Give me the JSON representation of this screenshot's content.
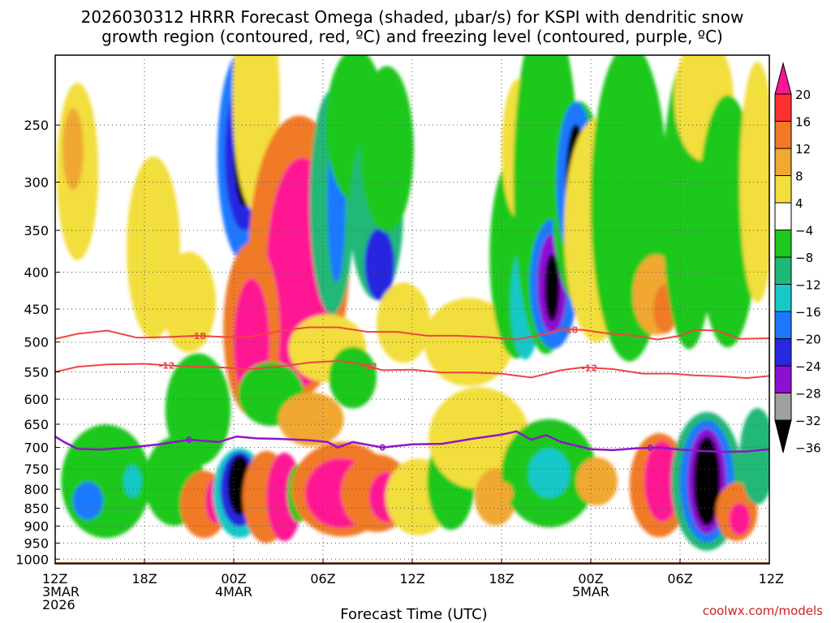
{
  "title": {
    "line1": "2026030312 HRRR Forecast Omega (shaded, μbar/s) for KSPI with dendritic snow",
    "line2": "growth region (contoured, red, ºC) and freezing level (contoured, purple, ºC)"
  },
  "x_axis_label": "Forecast Time (UTC)",
  "credit": "coolwx.com/models",
  "chart_data": {
    "type": "heatmap",
    "title": "2026030312 HRRR Forecast Omega (shaded, μbar/s) for KSPI with dendritic snow growth region (contoured, red, ºC) and freezing level (contoured, purple, ºC)",
    "xlabel": "Forecast Time (UTC)",
    "ylabel": "",
    "x_range_hours": [
      0,
      48
    ],
    "y_range_hpa": [
      1015,
      200
    ],
    "grid": true,
    "y_ticks": [
      250,
      300,
      350,
      400,
      450,
      500,
      550,
      600,
      650,
      700,
      750,
      800,
      850,
      900,
      950,
      1000
    ],
    "x_ticks": [
      {
        "hour": 0,
        "lines": [
          "12Z",
          "3MAR",
          "2026"
        ]
      },
      {
        "hour": 6,
        "lines": [
          "18Z"
        ]
      },
      {
        "hour": 12,
        "lines": [
          "00Z",
          "4MAR"
        ]
      },
      {
        "hour": 18,
        "lines": [
          "06Z"
        ]
      },
      {
        "hour": 24,
        "lines": [
          "12Z"
        ]
      },
      {
        "hour": 30,
        "lines": [
          "18Z"
        ]
      },
      {
        "hour": 36,
        "lines": [
          "00Z",
          "5MAR"
        ]
      },
      {
        "hour": 42,
        "lines": [
          "06Z"
        ]
      },
      {
        "hour": 48,
        "lines": [
          "12Z"
        ]
      }
    ],
    "colorbar": {
      "labels": [
        "20",
        "16",
        "12",
        "8",
        "4",
        "−4",
        "−8",
        "−12",
        "−16",
        "−20",
        "−24",
        "−28",
        "−32",
        "−36"
      ],
      "colors": [
        "#ff1493",
        "#ff3030",
        "#f07a28",
        "#f0a830",
        "#f2de3c",
        "#ffffff",
        "#1ec81e",
        "#20b878",
        "#18c8c8",
        "#1e78ff",
        "#2828e0",
        "#8c10d0",
        "#a0a0a0",
        "#000000"
      ]
    },
    "omega_cells": [
      {
        "t": 1.5,
        "p": 290,
        "dt": 1.4,
        "dp": 160,
        "c": 4
      },
      {
        "t": 1.2,
        "p": 270,
        "dt": 0.7,
        "dp": 70,
        "c": 3
      },
      {
        "t": 6.6,
        "p": 370,
        "dt": 1.8,
        "dp": 210,
        "c": 4
      },
      {
        "t": 9.0,
        "p": 440,
        "dt": 1.8,
        "dp": 140,
        "c": 4
      },
      {
        "t": 12.7,
        "p": 275,
        "dt": 1.8,
        "dp": 180,
        "c": 9
      },
      {
        "t": 12.7,
        "p": 275,
        "dt": 1.3,
        "dp": 130,
        "c": 10
      },
      {
        "t": 12.7,
        "p": 275,
        "dt": 0.7,
        "dp": 90,
        "c": 13
      },
      {
        "t": 13.5,
        "p": 230,
        "dt": 1.6,
        "dp": 160,
        "c": 4
      },
      {
        "t": 16.4,
        "p": 380,
        "dt": 3.4,
        "dp": 320,
        "c": 2
      },
      {
        "t": 16.6,
        "p": 400,
        "dt": 2.4,
        "dp": 280,
        "c": 0
      },
      {
        "t": 13.2,
        "p": 480,
        "dt": 1.9,
        "dp": 260,
        "c": 2
      },
      {
        "t": 13.2,
        "p": 500,
        "dt": 1.2,
        "dp": 200,
        "c": 0
      },
      {
        "t": 14.5,
        "p": 590,
        "dt": 2.2,
        "dp": 120,
        "c": 6
      },
      {
        "t": 18.6,
        "p": 320,
        "dt": 1.5,
        "dp": 220,
        "c": 7
      },
      {
        "t": 18.9,
        "p": 320,
        "dt": 0.6,
        "dp": 160,
        "c": 9
      },
      {
        "t": 20.2,
        "p": 250,
        "dt": 2.0,
        "dp": 120,
        "c": 6
      },
      {
        "t": 21.6,
        "p": 330,
        "dt": 1.8,
        "dp": 180,
        "c": 7
      },
      {
        "t": 21.8,
        "p": 390,
        "dt": 1.0,
        "dp": 90,
        "c": 10
      },
      {
        "t": 22.3,
        "p": 270,
        "dt": 1.8,
        "dp": 140,
        "c": 6
      },
      {
        "t": 23.4,
        "p": 470,
        "dt": 1.8,
        "dp": 120,
        "c": 4
      },
      {
        "t": 18.3,
        "p": 510,
        "dt": 2.6,
        "dp": 110,
        "c": 4
      },
      {
        "t": 17.2,
        "p": 640,
        "dt": 2.2,
        "dp": 110,
        "c": 3
      },
      {
        "t": 20.0,
        "p": 560,
        "dt": 1.6,
        "dp": 110,
        "c": 6
      },
      {
        "t": 9.6,
        "p": 620,
        "dt": 2.2,
        "dp": 220,
        "c": 6
      },
      {
        "t": 8.0,
        "p": 780,
        "dt": 2.0,
        "dp": 220,
        "c": 6
      },
      {
        "t": 3.4,
        "p": 780,
        "dt": 3.0,
        "dp": 280,
        "c": 6
      },
      {
        "t": 2.2,
        "p": 830,
        "dt": 1.0,
        "dp": 100,
        "c": 9
      },
      {
        "t": 5.2,
        "p": 780,
        "dt": 0.6,
        "dp": 80,
        "c": 8
      },
      {
        "t": 10.0,
        "p": 840,
        "dt": 1.6,
        "dp": 180,
        "c": 2
      },
      {
        "t": 10.8,
        "p": 830,
        "dt": 0.7,
        "dp": 120,
        "c": 0
      },
      {
        "t": 12.4,
        "p": 810,
        "dt": 1.8,
        "dp": 230,
        "c": 8
      },
      {
        "t": 12.4,
        "p": 800,
        "dt": 1.3,
        "dp": 190,
        "c": 10
      },
      {
        "t": 12.4,
        "p": 790,
        "dt": 0.8,
        "dp": 150,
        "c": 13
      },
      {
        "t": 14.2,
        "p": 820,
        "dt": 1.6,
        "dp": 240,
        "c": 2
      },
      {
        "t": 15.4,
        "p": 820,
        "dt": 1.2,
        "dp": 230,
        "c": 0
      },
      {
        "t": 16.4,
        "p": 810,
        "dt": 0.8,
        "dp": 150,
        "c": 6
      },
      {
        "t": 19.3,
        "p": 800,
        "dt": 3.4,
        "dp": 240,
        "c": 2
      },
      {
        "t": 19.2,
        "p": 810,
        "dt": 2.4,
        "dp": 180,
        "c": 0
      },
      {
        "t": 21.6,
        "p": 810,
        "dt": 2.4,
        "dp": 200,
        "c": 2
      },
      {
        "t": 22.3,
        "p": 820,
        "dt": 1.2,
        "dp": 130,
        "c": 0
      },
      {
        "t": 24.4,
        "p": 820,
        "dt": 2.2,
        "dp": 200,
        "c": 4
      },
      {
        "t": 26.6,
        "p": 780,
        "dt": 1.6,
        "dp": 240,
        "c": 6
      },
      {
        "t": 27.8,
        "p": 500,
        "dt": 3.0,
        "dp": 140,
        "c": 4
      },
      {
        "t": 28.5,
        "p": 680,
        "dt": 3.4,
        "dp": 220,
        "c": 4
      },
      {
        "t": 29.6,
        "p": 820,
        "dt": 1.4,
        "dp": 150,
        "c": 3
      },
      {
        "t": 30.0,
        "p": 820,
        "dt": 0.5,
        "dp": 40,
        "c": 0
      },
      {
        "t": 31.0,
        "p": 380,
        "dt": 1.8,
        "dp": 240,
        "c": 6
      },
      {
        "t": 31.6,
        "p": 440,
        "dt": 1.0,
        "dp": 160,
        "c": 8
      },
      {
        "t": 31.2,
        "p": 270,
        "dt": 1.2,
        "dp": 120,
        "c": 4
      },
      {
        "t": 33.0,
        "p": 300,
        "dt": 2.2,
        "dp": 300,
        "c": 6
      },
      {
        "t": 33.5,
        "p": 415,
        "dt": 1.6,
        "dp": 170,
        "c": 9
      },
      {
        "t": 33.4,
        "p": 415,
        "dt": 1.0,
        "dp": 130,
        "c": 11
      },
      {
        "t": 33.4,
        "p": 420,
        "dt": 0.5,
        "dp": 90,
        "c": 13
      },
      {
        "t": 35.2,
        "p": 320,
        "dt": 1.8,
        "dp": 200,
        "c": 6
      },
      {
        "t": 35.0,
        "p": 300,
        "dt": 1.3,
        "dp": 150,
        "c": 9
      },
      {
        "t": 35.0,
        "p": 300,
        "dt": 0.7,
        "dp": 110,
        "c": 13
      },
      {
        "t": 36.4,
        "p": 350,
        "dt": 2.2,
        "dp": 240,
        "c": 4
      },
      {
        "t": 38.6,
        "p": 320,
        "dt": 2.6,
        "dp": 300,
        "c": 6
      },
      {
        "t": 40.4,
        "p": 430,
        "dt": 1.6,
        "dp": 110,
        "c": 3
      },
      {
        "t": 41.0,
        "p": 450,
        "dt": 0.8,
        "dp": 70,
        "c": 2
      },
      {
        "t": 42.6,
        "p": 320,
        "dt": 1.8,
        "dp": 280,
        "c": 6
      },
      {
        "t": 43.6,
        "p": 230,
        "dt": 2.0,
        "dp": 90,
        "c": 4
      },
      {
        "t": 45.2,
        "p": 340,
        "dt": 2.0,
        "dp": 260,
        "c": 6
      },
      {
        "t": 47.2,
        "p": 300,
        "dt": 1.2,
        "dp": 220,
        "c": 4
      },
      {
        "t": 33.2,
        "p": 760,
        "dt": 3.2,
        "dp": 260,
        "c": 6
      },
      {
        "t": 33.2,
        "p": 760,
        "dt": 1.4,
        "dp": 120,
        "c": 8
      },
      {
        "t": 36.4,
        "p": 780,
        "dt": 1.4,
        "dp": 120,
        "c": 3
      },
      {
        "t": 40.6,
        "p": 790,
        "dt": 2.0,
        "dp": 260,
        "c": 2
      },
      {
        "t": 40.8,
        "p": 780,
        "dt": 1.2,
        "dp": 200,
        "c": 0
      },
      {
        "t": 43.8,
        "p": 780,
        "dt": 2.4,
        "dp": 340,
        "c": 7
      },
      {
        "t": 43.8,
        "p": 780,
        "dt": 1.8,
        "dp": 300,
        "c": 9
      },
      {
        "t": 43.8,
        "p": 780,
        "dt": 1.3,
        "dp": 260,
        "c": 11
      },
      {
        "t": 43.8,
        "p": 780,
        "dt": 0.9,
        "dp": 220,
        "c": 13
      },
      {
        "t": 45.8,
        "p": 860,
        "dt": 1.4,
        "dp": 160,
        "c": 2
      },
      {
        "t": 46.0,
        "p": 880,
        "dt": 0.7,
        "dp": 90,
        "c": 0
      },
      {
        "t": 47.2,
        "p": 720,
        "dt": 1.2,
        "dp": 220,
        "c": 7
      },
      {
        "t": 30.0,
        "p": 810,
        "dt": 0.8,
        "dp": 60,
        "c": 3
      }
    ],
    "dendritic_contours": [
      {
        "label": "-18",
        "color": "#ee4444",
        "label_positions": [
          9.6,
          34.6
        ],
        "points": [
          [
            0,
            495
          ],
          [
            1.5,
            487
          ],
          [
            3.5,
            482
          ],
          [
            5.5,
            493
          ],
          [
            7.5,
            492
          ],
          [
            9.5,
            490
          ],
          [
            11.5,
            492
          ],
          [
            13,
            492
          ],
          [
            15,
            483
          ],
          [
            17,
            477
          ],
          [
            19,
            477
          ],
          [
            21,
            484
          ],
          [
            23,
            484
          ],
          [
            25,
            490
          ],
          [
            27,
            490
          ],
          [
            29,
            492
          ],
          [
            31,
            496
          ],
          [
            33,
            487
          ],
          [
            34,
            480
          ],
          [
            35.5,
            481
          ],
          [
            37,
            486
          ],
          [
            39,
            490
          ],
          [
            40.5,
            496
          ],
          [
            42,
            490
          ],
          [
            43,
            481
          ],
          [
            44.5,
            482
          ],
          [
            46,
            495
          ],
          [
            48,
            494
          ]
        ]
      },
      {
        "label": "-12",
        "color": "#ee4444",
        "label_positions": [
          7.5,
          21.1,
          35.9
        ],
        "points": [
          [
            0,
            550
          ],
          [
            1.5,
            541
          ],
          [
            3.5,
            537
          ],
          [
            6,
            536
          ],
          [
            8.5,
            540
          ],
          [
            11,
            542
          ],
          [
            13,
            545
          ],
          [
            15,
            541
          ],
          [
            17,
            534
          ],
          [
            19,
            531
          ],
          [
            20.5,
            536
          ],
          [
            22,
            547
          ],
          [
            24,
            546
          ],
          [
            26,
            551
          ],
          [
            28,
            551
          ],
          [
            30,
            553
          ],
          [
            32,
            560
          ],
          [
            34,
            547
          ],
          [
            35.5,
            542
          ],
          [
            37.5,
            545
          ],
          [
            39.5,
            553
          ],
          [
            41.5,
            553
          ],
          [
            43,
            556
          ],
          [
            45,
            558
          ],
          [
            46.5,
            561
          ],
          [
            48,
            557
          ]
        ]
      }
    ],
    "freezing_contour": {
      "label": "0",
      "color": "#9014c8",
      "label_positions": [
        9.0,
        22.0,
        40.0
      ],
      "points": [
        [
          0,
          676
        ],
        [
          0.6,
          688
        ],
        [
          1.5,
          703
        ],
        [
          3,
          705
        ],
        [
          5,
          700
        ],
        [
          7,
          693
        ],
        [
          9,
          683
        ],
        [
          11,
          688
        ],
        [
          12.2,
          676
        ],
        [
          13.5,
          680
        ],
        [
          15,
          681
        ],
        [
          17,
          684
        ],
        [
          18.3,
          688
        ],
        [
          19,
          700
        ],
        [
          20,
          688
        ],
        [
          22,
          700
        ],
        [
          24,
          693
        ],
        [
          26,
          692
        ],
        [
          28,
          681
        ],
        [
          30,
          672
        ],
        [
          31,
          665
        ],
        [
          32,
          683
        ],
        [
          33,
          673
        ],
        [
          34,
          688
        ],
        [
          36,
          704
        ],
        [
          37.5,
          706
        ],
        [
          39,
          702
        ],
        [
          40.5,
          700
        ],
        [
          42,
          705
        ],
        [
          43.5,
          708
        ],
        [
          45,
          710
        ],
        [
          46.5,
          709
        ],
        [
          48,
          704
        ]
      ]
    },
    "ground": {
      "top_hpa": 1015,
      "color": "#a0522d"
    }
  }
}
